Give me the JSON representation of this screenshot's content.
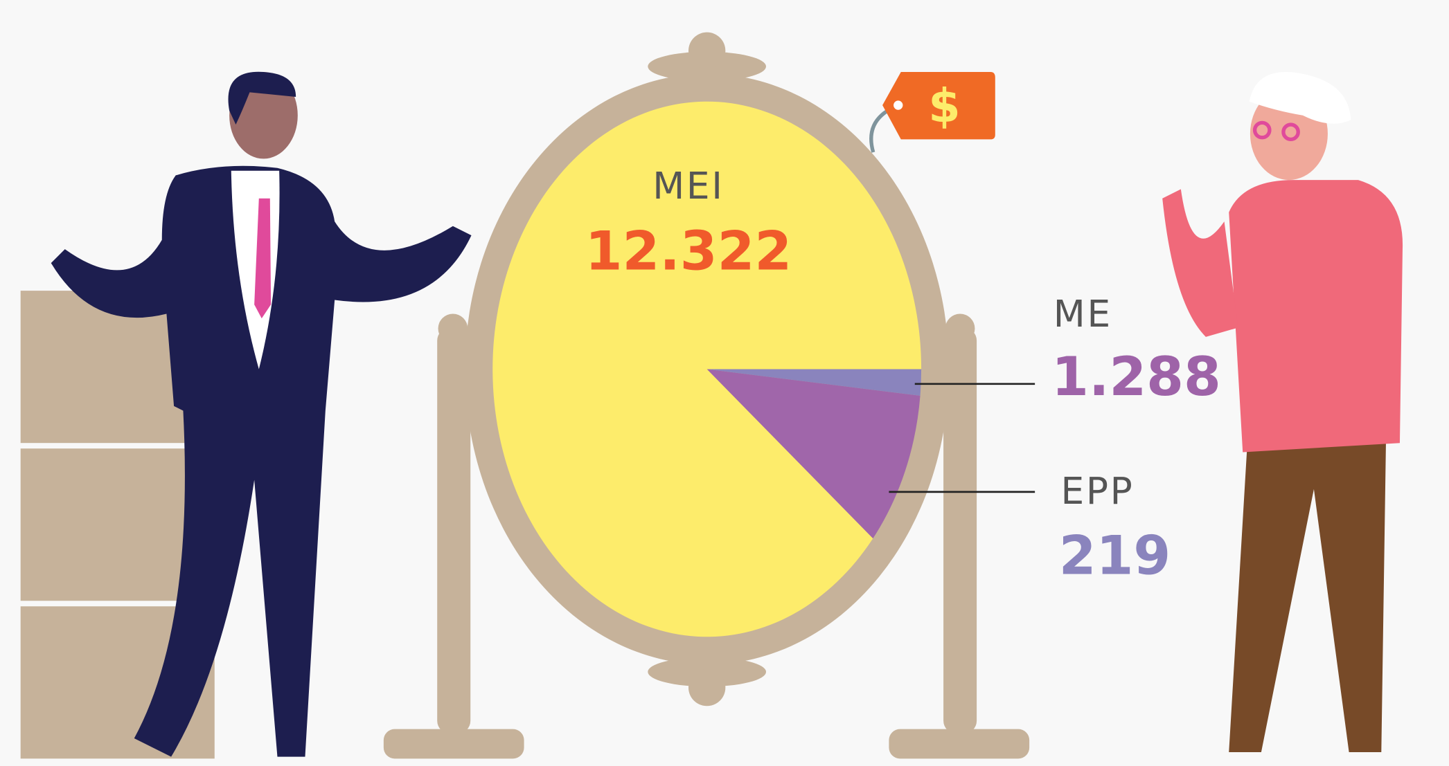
{
  "chart_data": {
    "type": "pie",
    "categories": [
      "MEI",
      "ME",
      "EPP"
    ],
    "values": [
      12322,
      1288,
      219
    ],
    "value_labels": [
      "12.322",
      "1.288",
      "219"
    ],
    "colors": [
      "#fdec6b",
      "#a066aa",
      "#8a84bd"
    ],
    "label_colors": [
      "#f05a2b",
      "#9e63a8",
      "#8a84bd"
    ]
  }
}
